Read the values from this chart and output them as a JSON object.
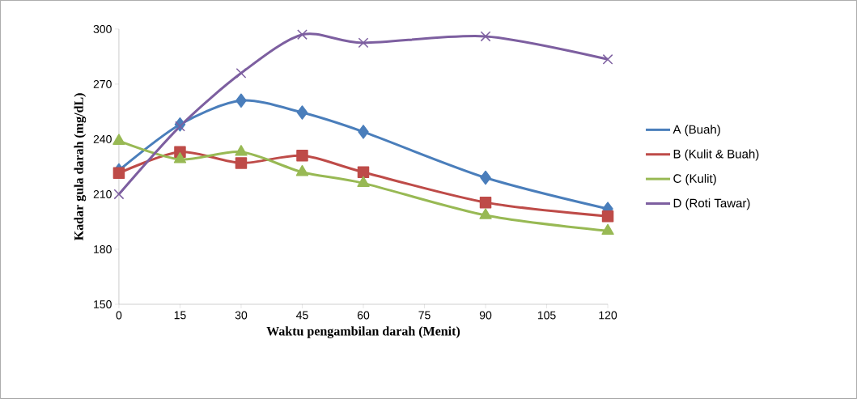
{
  "chart_data": {
    "type": "line",
    "xlabel": "Waktu pengambilan darah (Menit)",
    "ylabel": "Kadar gula darah (mg/dL)",
    "x": [
      0,
      15,
      30,
      45,
      60,
      90,
      120
    ],
    "xlim": [
      0,
      120
    ],
    "xticks": [
      0,
      15,
      30,
      45,
      60,
      75,
      90,
      105,
      120
    ],
    "ylim": [
      150,
      300
    ],
    "yticks": [
      150,
      180,
      210,
      240,
      270,
      300
    ],
    "grid": false,
    "legend": "right",
    "line_style": "solid",
    "series": [
      {
        "name": "A (Buah)",
        "color": "#4a7ebb",
        "marker": "diamond",
        "values": [
          223,
          248,
          261,
          254.5,
          244,
          219,
          202
        ]
      },
      {
        "name": "B (Kulit & Buah)",
        "color": "#be4b48",
        "marker": "square",
        "values": [
          221.5,
          233,
          227,
          231,
          222,
          205.5,
          198
        ]
      },
      {
        "name": "C (Kulit)",
        "color": "#98b954",
        "marker": "triangle",
        "values": [
          239,
          229,
          233,
          222,
          216,
          198.5,
          190
        ]
      },
      {
        "name": "D (Roti Tawar)",
        "color": "#7d5fa0",
        "marker": "cross",
        "values": [
          210,
          247,
          276,
          297,
          292.5,
          296,
          283.5
        ]
      }
    ]
  }
}
